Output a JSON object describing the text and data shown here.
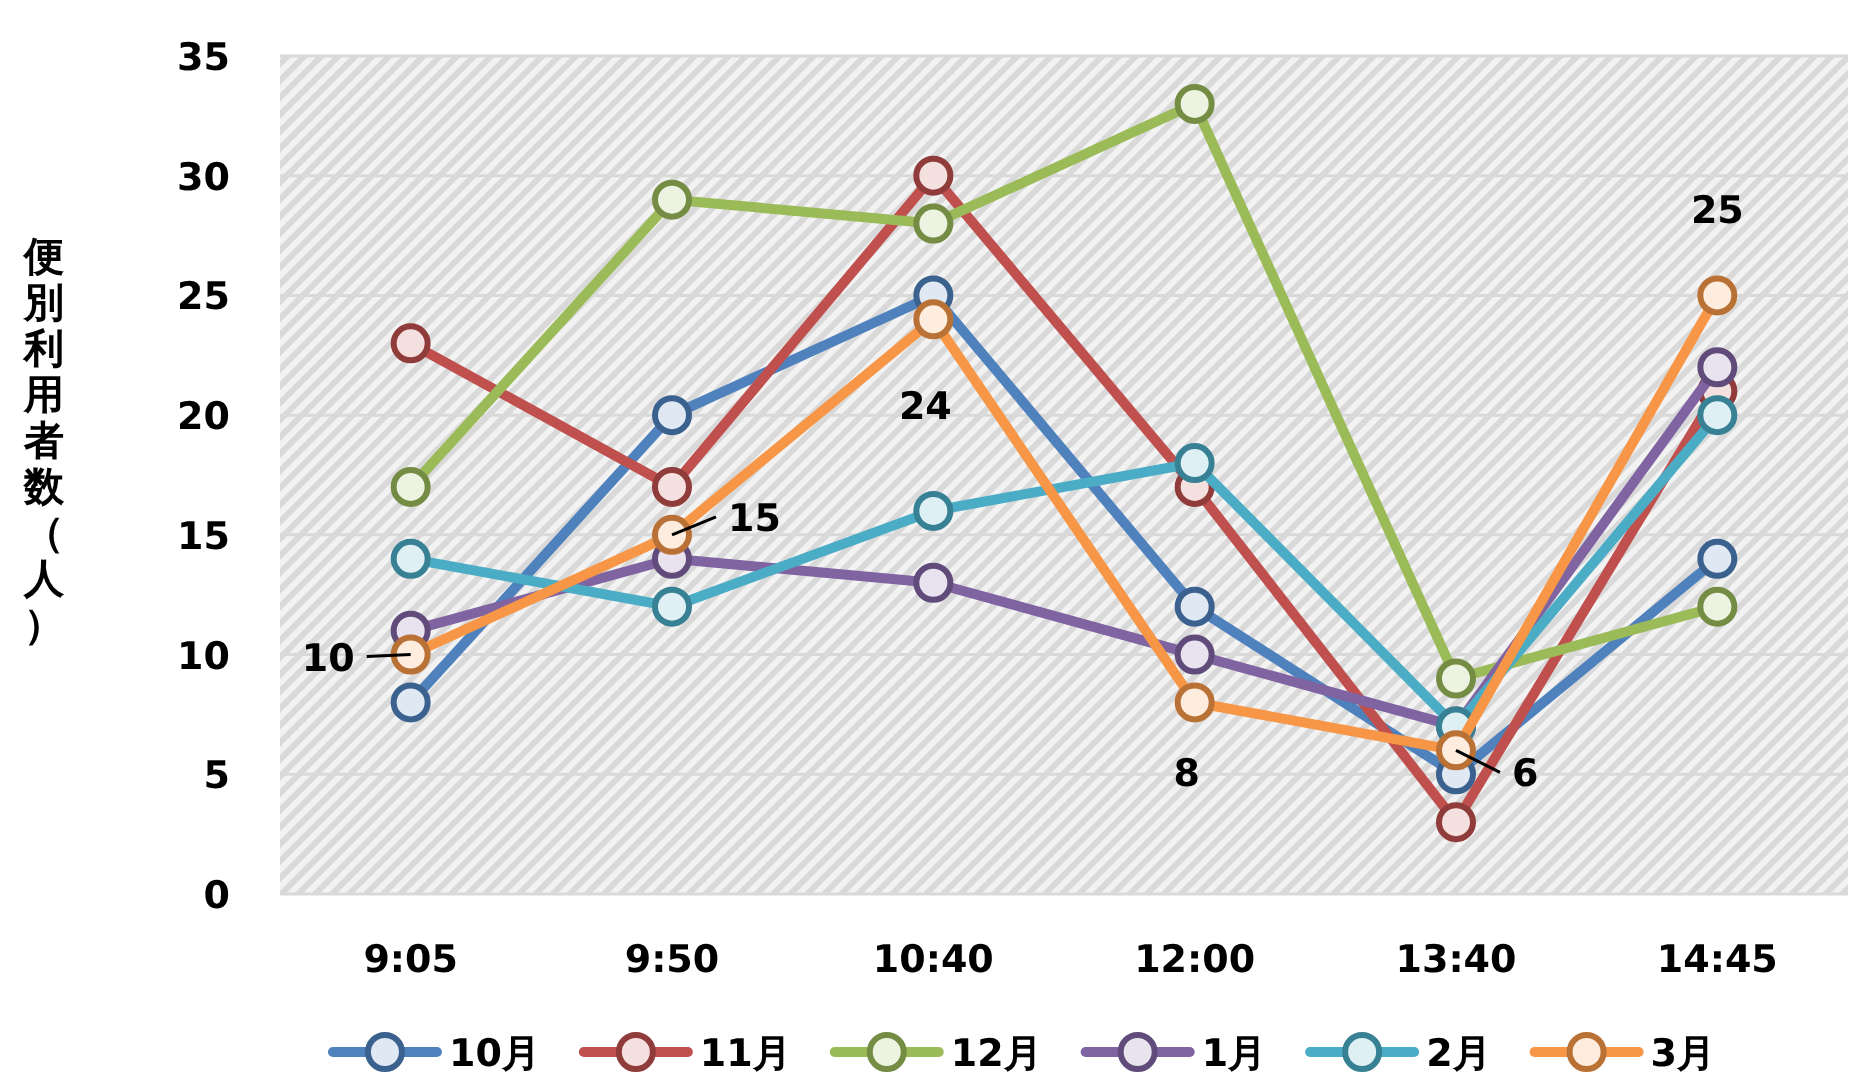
{
  "chart_data": {
    "type": "line",
    "ylabel": "便別利用者数（人）",
    "categories": [
      "9:05",
      "9:50",
      "10:40",
      "12:00",
      "13:40",
      "14:45"
    ],
    "ylim": [
      0,
      35
    ],
    "yticks": [
      0,
      5,
      10,
      15,
      20,
      25,
      30,
      35
    ],
    "grid": "y",
    "legend": "bottom",
    "marker": "circle",
    "line_style": "solid",
    "series": [
      {
        "name": "10月",
        "color": "#4f81bd",
        "values": [
          8,
          20,
          25,
          12,
          5,
          14
        ]
      },
      {
        "name": "11月",
        "color": "#c0504d",
        "values": [
          23,
          17,
          30,
          17,
          3,
          21
        ]
      },
      {
        "name": "12月",
        "color": "#9bbb59",
        "values": [
          17,
          29,
          28,
          33,
          9,
          12
        ]
      },
      {
        "name": "1月",
        "color": "#8064a2",
        "values": [
          11,
          14,
          13,
          10,
          7,
          22
        ]
      },
      {
        "name": "2月",
        "color": "#4bacc6",
        "values": [
          14,
          12,
          16,
          18,
          7,
          20
        ]
      },
      {
        "name": "3月",
        "color": "#f79646",
        "values": [
          10,
          15,
          24,
          8,
          6,
          25
        ],
        "value_labels": [
          "10",
          "15",
          "24",
          "8",
          "6",
          "25"
        ]
      }
    ]
  }
}
